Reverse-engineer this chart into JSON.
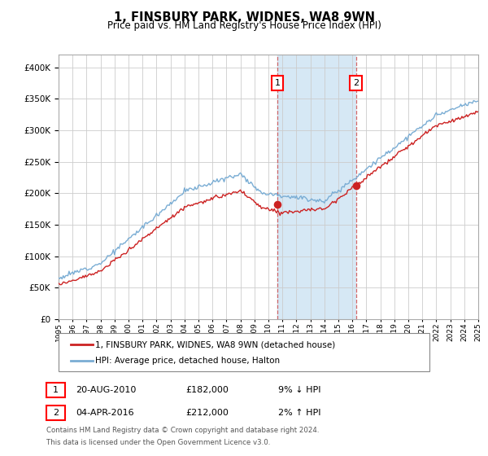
{
  "title": "1, FINSBURY PARK, WIDNES, WA8 9WN",
  "subtitle": "Price paid vs. HM Land Registry's House Price Index (HPI)",
  "legend_line1": "1, FINSBURY PARK, WIDNES, WA8 9WN (detached house)",
  "legend_line2": "HPI: Average price, detached house, Halton",
  "transaction1_date": "20-AUG-2010",
  "transaction1_price": "£182,000",
  "transaction1_hpi": "9% ↓ HPI",
  "transaction2_date": "04-APR-2016",
  "transaction2_price": "£212,000",
  "transaction2_hpi": "2% ↑ HPI",
  "footer_line1": "Contains HM Land Registry data © Crown copyright and database right 2024.",
  "footer_line2": "This data is licensed under the Open Government Licence v3.0.",
  "ylim_max": 420000,
  "year_start": 1995,
  "year_end": 2025,
  "transaction1_year": 2010.64,
  "transaction2_year": 2016.25,
  "transaction1_price_val": 182000,
  "transaction2_price_val": 212000,
  "hpi_color": "#7aadd4",
  "price_color": "#cc2222",
  "highlight_color": "#d6e8f5",
  "marker_color": "#cc2222",
  "vline_color": "#cc4444"
}
